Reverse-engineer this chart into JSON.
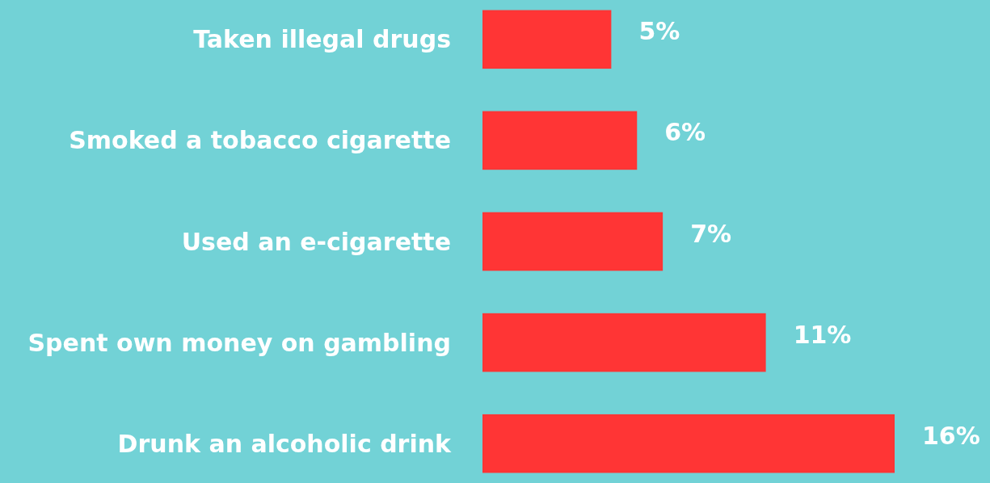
{
  "chart_data": {
    "type": "bar",
    "orientation": "horizontal",
    "categories": [
      "Taken illegal drugs",
      "Smoked a tobacco cigarette",
      "Used an e-cigarette",
      "Spent own money on gambling",
      "Drunk an alcoholic drink"
    ],
    "values": [
      5,
      6,
      7,
      11,
      16
    ],
    "color": "#ff3535",
    "value_labels": [
      "5%",
      "6%",
      "7%",
      "11%",
      "16%"
    ],
    "grid": false
  }
}
